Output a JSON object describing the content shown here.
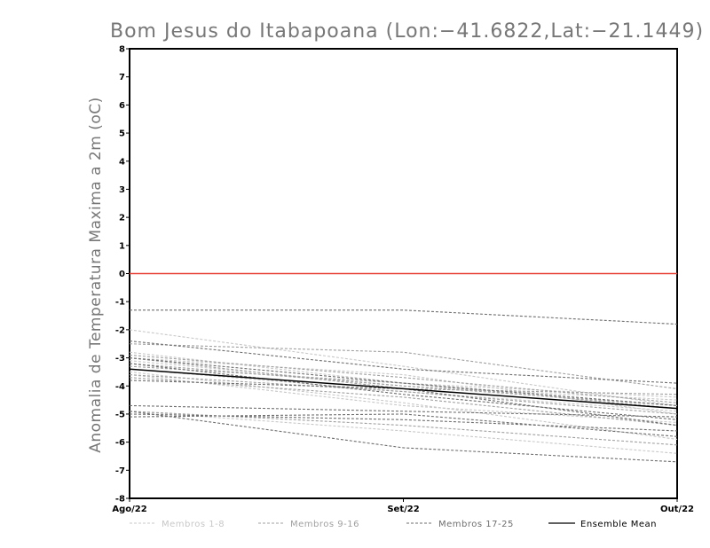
{
  "chart_data": {
    "type": "line",
    "title": "Bom Jesus do Itabapoana (Lon:−41.6822,Lat:−21.1449)",
    "xlabel": "",
    "ylabel": "Anomalia de Temperatura Maxima a 2m (oC)",
    "categories": [
      "Ago/22",
      "Set/22",
      "Out/22"
    ],
    "ylim": [
      -8,
      8
    ],
    "yticks": [
      "8",
      "7",
      "6",
      "5",
      "4",
      "3",
      "2",
      "1",
      "0",
      "-1",
      "-2",
      "-3",
      "-4",
      "-5",
      "-6",
      "-7",
      "-8"
    ],
    "zero_line_color": "#e8443a",
    "grid": false,
    "legend_position": "bottom",
    "legend": [
      {
        "label": "Membros 1-8",
        "color": "#c8c8c8",
        "style": "dashed"
      },
      {
        "label": "Membros 9-16",
        "color": "#a0a0a0",
        "style": "dashed"
      },
      {
        "label": "Membros 17-25",
        "color": "#6e6e6e",
        "style": "dashed"
      },
      {
        "label": "Ensemble Mean",
        "color": "#000000",
        "style": "solid"
      }
    ],
    "series": [
      {
        "name": "Membros 1-8",
        "color": "#c8c8c8",
        "values": [
          -2.0,
          -3.3,
          -4.7
        ]
      },
      {
        "name": "Membros 1-8",
        "color": "#c8c8c8",
        "values": [
          -3.0,
          -3.6,
          -5.0
        ]
      },
      {
        "name": "Membros 1-8",
        "color": "#c8c8c8",
        "values": [
          -3.5,
          -4.6,
          -5.9
        ]
      },
      {
        "name": "Membros 1-8",
        "color": "#c8c8c8",
        "values": [
          -3.4,
          -4.2,
          -4.9
        ]
      },
      {
        "name": "Membros 1-8",
        "color": "#c8c8c8",
        "values": [
          -4.9,
          -5.6,
          -6.4
        ]
      },
      {
        "name": "Membros 1-8",
        "color": "#c8c8c8",
        "values": [
          -3.1,
          -4.0,
          -4.5
        ]
      },
      {
        "name": "Membros 1-8",
        "color": "#c8c8c8",
        "values": [
          -3.6,
          -4.7,
          -5.3
        ]
      },
      {
        "name": "Membros 1-8",
        "color": "#c8c8c8",
        "values": [
          -2.8,
          -3.9,
          -4.4
        ]
      },
      {
        "name": "Membros 9-16",
        "color": "#a0a0a0",
        "values": [
          -2.5,
          -2.8,
          -4.1
        ]
      },
      {
        "name": "Membros 9-16",
        "color": "#a0a0a0",
        "values": [
          -2.9,
          -3.7,
          -4.6
        ]
      },
      {
        "name": "Membros 9-16",
        "color": "#a0a0a0",
        "values": [
          -3.3,
          -3.9,
          -4.8
        ]
      },
      {
        "name": "Membros 9-16",
        "color": "#a0a0a0",
        "values": [
          -3.6,
          -4.2,
          -5.0
        ]
      },
      {
        "name": "Membros 9-16",
        "color": "#a0a0a0",
        "values": [
          -3.0,
          -4.1,
          -4.3
        ]
      },
      {
        "name": "Membros 9-16",
        "color": "#a0a0a0",
        "values": [
          -3.7,
          -4.4,
          -5.4
        ]
      },
      {
        "name": "Membros 9-16",
        "color": "#a0a0a0",
        "values": [
          -3.2,
          -4.0,
          -4.7
        ]
      },
      {
        "name": "Membros 9-16",
        "color": "#a0a0a0",
        "values": [
          -4.9,
          -5.4,
          -6.1
        ]
      },
      {
        "name": "Membros 17-25",
        "color": "#6e6e6e",
        "values": [
          -1.3,
          -1.3,
          -1.8
        ]
      },
      {
        "name": "Membros 17-25",
        "color": "#6e6e6e",
        "values": [
          -2.4,
          -3.4,
          -3.9
        ]
      },
      {
        "name": "Membros 17-25",
        "color": "#6e6e6e",
        "values": [
          -3.0,
          -3.9,
          -4.7
        ]
      },
      {
        "name": "Membros 17-25",
        "color": "#6e6e6e",
        "values": [
          -4.7,
          -4.9,
          -5.1
        ]
      },
      {
        "name": "Membros 17-25",
        "color": "#6e6e6e",
        "values": [
          -4.9,
          -6.2,
          -6.7
        ]
      },
      {
        "name": "Membros 17-25",
        "color": "#6e6e6e",
        "values": [
          -5.1,
          -5.0,
          -5.8
        ]
      },
      {
        "name": "Membros 17-25",
        "color": "#6e6e6e",
        "values": [
          -3.8,
          -4.1,
          -5.4
        ]
      },
      {
        "name": "Membros 17-25",
        "color": "#6e6e6e",
        "values": [
          -3.2,
          -4.3,
          -5.2
        ]
      },
      {
        "name": "Membros 17-25",
        "color": "#6e6e6e",
        "values": [
          -5.0,
          -5.2,
          -5.6
        ]
      },
      {
        "name": "Ensemble Mean",
        "color": "#000000",
        "values": [
          -3.4,
          -4.1,
          -4.8
        ]
      }
    ]
  }
}
